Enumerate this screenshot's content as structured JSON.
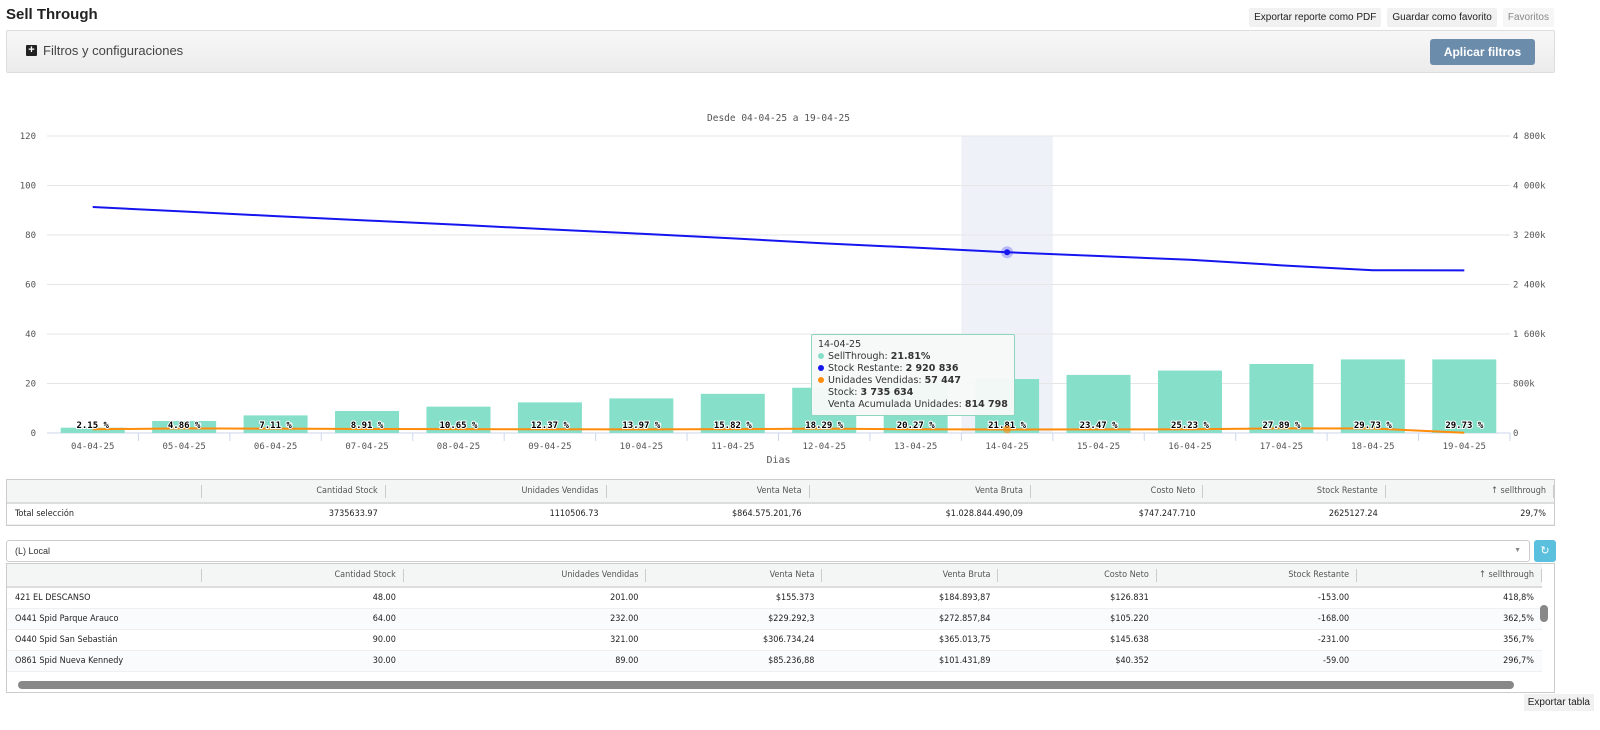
{
  "header": {
    "title": "Sell Through",
    "export_pdf": "Exportar reporte como PDF",
    "save_favorite": "Guardar como favorito",
    "favorites": "Favoritos"
  },
  "filters": {
    "label": "Filtros y configuraciones",
    "apply": "Aplicar filtros"
  },
  "colors": {
    "bars": "#86dfc9",
    "stock_line": "#1515f0",
    "units_line": "#ff8c0a",
    "highlight": "#eef2f8",
    "apply": "#6b8cab"
  },
  "chart_data": {
    "type": "bar+line",
    "title": "Desde 04-04-25 a 19-04-25",
    "xlabel": "Dias",
    "categories": [
      "04-04-25",
      "05-04-25",
      "06-04-25",
      "07-04-25",
      "08-04-25",
      "09-04-25",
      "10-04-25",
      "11-04-25",
      "12-04-25",
      "13-04-25",
      "14-04-25",
      "15-04-25",
      "16-04-25",
      "17-04-25",
      "18-04-25",
      "19-04-25"
    ],
    "left_axis": {
      "ylim": [
        0,
        120
      ],
      "ticks": [
        "0",
        "20",
        "40",
        "60",
        "80",
        "100",
        "120"
      ]
    },
    "right_axis": {
      "ylim": [
        0,
        4800000
      ],
      "ticks": [
        "0",
        "800k",
        "1 600k",
        "2 400k",
        "3 200k",
        "4 000k",
        "4 800k"
      ]
    },
    "series": [
      {
        "name": "SellThrough",
        "axis": "left",
        "type": "bar",
        "values": [
          2.15,
          4.86,
          7.11,
          8.91,
          10.65,
          12.37,
          13.97,
          15.82,
          18.29,
          20.27,
          21.81,
          23.47,
          25.23,
          27.89,
          29.73,
          29.73
        ],
        "labels": [
          "2.15 %",
          "4.86 %",
          "7.11 %",
          "8.91 %",
          "10.65 %",
          "12.37 %",
          "13.97 %",
          "15.82 %",
          "18.29 %",
          "20.27 %",
          "21.81 %",
          "23.47 %",
          "25.23 %",
          "27.89 %",
          "29.73 %",
          "29.73 %"
        ]
      },
      {
        "name": "Stock Restante",
        "axis": "right",
        "type": "line",
        "values": [
          3652000,
          3580000,
          3505000,
          3435000,
          3365000,
          3290000,
          3220000,
          3145000,
          3065000,
          2995000,
          2920836,
          2860000,
          2800000,
          2710000,
          2630000,
          2628000
        ]
      },
      {
        "name": "Unidades Vendidas",
        "axis": "right",
        "type": "line",
        "values": [
          60000,
          75000,
          70000,
          65000,
          62000,
          60000,
          58000,
          62000,
          70000,
          60000,
          57447,
          58000,
          60000,
          75000,
          72000,
          5000
        ]
      }
    ],
    "highlight_index": 10
  },
  "tooltip": {
    "date": "14-04-25",
    "l1": "SellThrough: ",
    "v1": "21.81%",
    "l2": "Stock Restante: ",
    "v2": "2 920 836",
    "l3": "Unidades Vendidas: ",
    "v3": "57 447",
    "l4": "Stock: ",
    "v4": "3 735 634",
    "l5": "Venta Acumulada Unidades: ",
    "v5": "814 798"
  },
  "summary": {
    "headers": [
      "",
      "Cantidad Stock",
      "Unidades Vendidas",
      "Venta Neta",
      "Venta Bruta",
      "Costo Neto",
      "Stock Restante",
      "↑ sellthrough"
    ],
    "row": [
      "Total selección",
      "3735633.97",
      "1110506.73",
      "$864.575.201,76",
      "$1.028.844.490,09",
      "$747.247.710",
      "2625127.24",
      "29,7%"
    ]
  },
  "group_select": {
    "value": "(L) Local"
  },
  "detail": {
    "headers": [
      "",
      "Cantidad Stock",
      "Unidades Vendidas",
      "Venta Neta",
      "Venta Bruta",
      "Costo Neto",
      "Stock Restante",
      "↑ sellthrough"
    ],
    "rows": [
      [
        "421 EL DESCANSO",
        "48.00",
        "201.00",
        "$155.373",
        "$184.893,87",
        "$126.831",
        "-153.00",
        "418,8%"
      ],
      [
        "O441 Spid Parque Arauco",
        "64.00",
        "232.00",
        "$229.292,3",
        "$272.857,84",
        "$105.220",
        "-168.00",
        "362,5%"
      ],
      [
        "O440 Spid San Sebastián",
        "90.00",
        "321.00",
        "$306.734,24",
        "$365.013,75",
        "$145.638",
        "-231.00",
        "356,7%"
      ],
      [
        "O861 Spid Nueva Kennedy",
        "30.00",
        "89.00",
        "$85.236,88",
        "$101.431,89",
        "$40.352",
        "-59.00",
        "296,7%"
      ]
    ]
  },
  "export_table": "Exportar tabla"
}
